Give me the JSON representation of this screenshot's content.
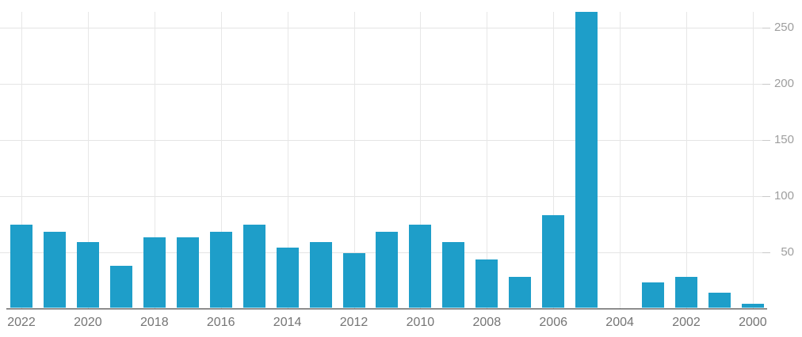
{
  "chart_data": {
    "type": "bar",
    "title": "",
    "xlabel": "",
    "ylabel": "",
    "x": [
      2022,
      2021,
      2020,
      2019,
      2018,
      2017,
      2016,
      2015,
      2014,
      2013,
      2012,
      2011,
      2010,
      2009,
      2008,
      2007,
      2006,
      2005,
      2004,
      2003,
      2002,
      2001,
      2000
    ],
    "values": [
      74,
      68,
      59,
      38,
      63,
      63,
      68,
      74,
      54,
      59,
      49,
      68,
      74,
      59,
      43,
      28,
      83,
      264,
      0,
      23,
      28,
      14,
      4
    ],
    "x_tick_labels": [
      "2022",
      "2020",
      "2018",
      "2016",
      "2014",
      "2012",
      "2010",
      "2008",
      "2006",
      "2004",
      "2002",
      "2000"
    ],
    "y_ticks": [
      50,
      100,
      150,
      200,
      250
    ],
    "ylim": [
      0,
      273
    ],
    "x_axis_order": "descending-left-to-right",
    "y_axis_position": "right",
    "grid": true,
    "legend": "none"
  },
  "colors": {
    "bar": "#1e9ec9",
    "h_gridline": "#e4e4e4",
    "v_gridline": "#e7e7e7",
    "tick_dash": "#c9c9c9",
    "axis_line": "#2a2a2a",
    "x_label": "#757575",
    "y_label": "#9e9e9e",
    "background": "#ffffff"
  }
}
